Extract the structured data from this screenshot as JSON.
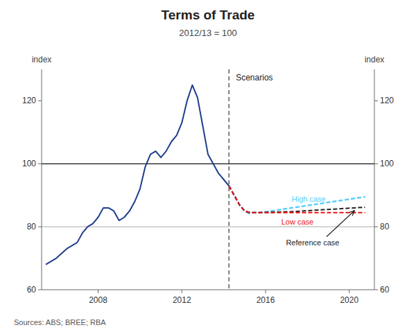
{
  "chart_data": {
    "type": "line",
    "title": "Terms of Trade",
    "subtitle": "2012/13 = 100",
    "ylabel": "index",
    "y2label": "index",
    "source": "Sources:  ABS; BREE; RBA",
    "annotations": [
      "Scenarios"
    ],
    "xlim": [
      2005.3,
      2021.2
    ],
    "xticks": [
      2008,
      2012,
      2016,
      2020
    ],
    "ylim": [
      60,
      130
    ],
    "yticks": [
      60,
      80,
      100,
      120
    ],
    "y2lim": [
      60,
      130
    ],
    "y2ticks": [
      60,
      80,
      100,
      120
    ],
    "hlines": [
      100,
      80
    ],
    "vlines": [
      2014.25
    ],
    "grid": false,
    "series": [
      {
        "color": "#1f3d8c",
        "line_style": "solid",
        "x": [
          2005.5,
          2006.0,
          2006.5,
          2007.0,
          2007.25,
          2007.5,
          2007.75,
          2008.0,
          2008.25,
          2008.5,
          2008.75,
          2009.0,
          2009.25,
          2009.5,
          2009.75,
          2010.0,
          2010.25,
          2010.5,
          2010.75,
          2011.0,
          2011.25,
          2011.5,
          2011.75,
          2012.0,
          2012.25,
          2012.5,
          2012.75,
          2013.0,
          2013.25,
          2013.5,
          2013.75,
          2014.0,
          2014.25
        ],
        "values": [
          68,
          70,
          73,
          75,
          78,
          80,
          81,
          83,
          86,
          86,
          85,
          82,
          83,
          85,
          88,
          92,
          99,
          103,
          104,
          102,
          104,
          107,
          109,
          113,
          120,
          125,
          121,
          112,
          103,
          100,
          97,
          95,
          93
        ]
      },
      {
        "color": "#5ab4e8",
        "line_style": "dashed",
        "x": [
          2014.25,
          2014.75,
          2015.0,
          2015.25
        ],
        "values": [
          93,
          87,
          85,
          84
        ]
      },
      {
        "name": "High case",
        "color": "#55ccff",
        "line_style": "dashed",
        "x": [
          2014.25,
          2014.75,
          2015.0,
          2015.25,
          2015.75,
          2016.25,
          2016.75,
          2017.25,
          2017.75,
          2018.25,
          2018.75,
          2019.25,
          2019.75,
          2020.25,
          2020.75
        ],
        "values": [
          93,
          87,
          85,
          84.5,
          84.5,
          85.0,
          85.5,
          86.0,
          86.5,
          87.0,
          87.5,
          88.0,
          88.5,
          89.0,
          89.5
        ]
      },
      {
        "name": "Reference case",
        "color": "#222222",
        "line_style": "dashed",
        "x": [
          2014.25,
          2014.75,
          2015.0,
          2015.25,
          2015.75,
          2016.25,
          2016.75,
          2017.25,
          2017.75,
          2018.25,
          2018.75,
          2019.25,
          2019.75,
          2020.25,
          2020.75
        ],
        "values": [
          93,
          87,
          85,
          84.5,
          84.5,
          84.6,
          84.7,
          84.8,
          85.0,
          85.2,
          85.4,
          85.6,
          85.8,
          86.0,
          86.2
        ]
      },
      {
        "name": "Low case",
        "color": "#ee1111",
        "line_style": "dashed",
        "x": [
          2014.25,
          2014.75,
          2015.0,
          2015.25,
          2015.75,
          2016.25,
          2016.75,
          2017.25,
          2017.75,
          2018.25,
          2018.75,
          2019.25,
          2019.75,
          2020.25,
          2020.75
        ],
        "values": [
          93,
          87,
          85,
          84.5,
          84.5,
          84.5,
          84.5,
          84.5,
          84.5,
          84.5,
          84.5,
          84.5,
          84.5,
          84.5,
          84.5
        ]
      }
    ]
  }
}
